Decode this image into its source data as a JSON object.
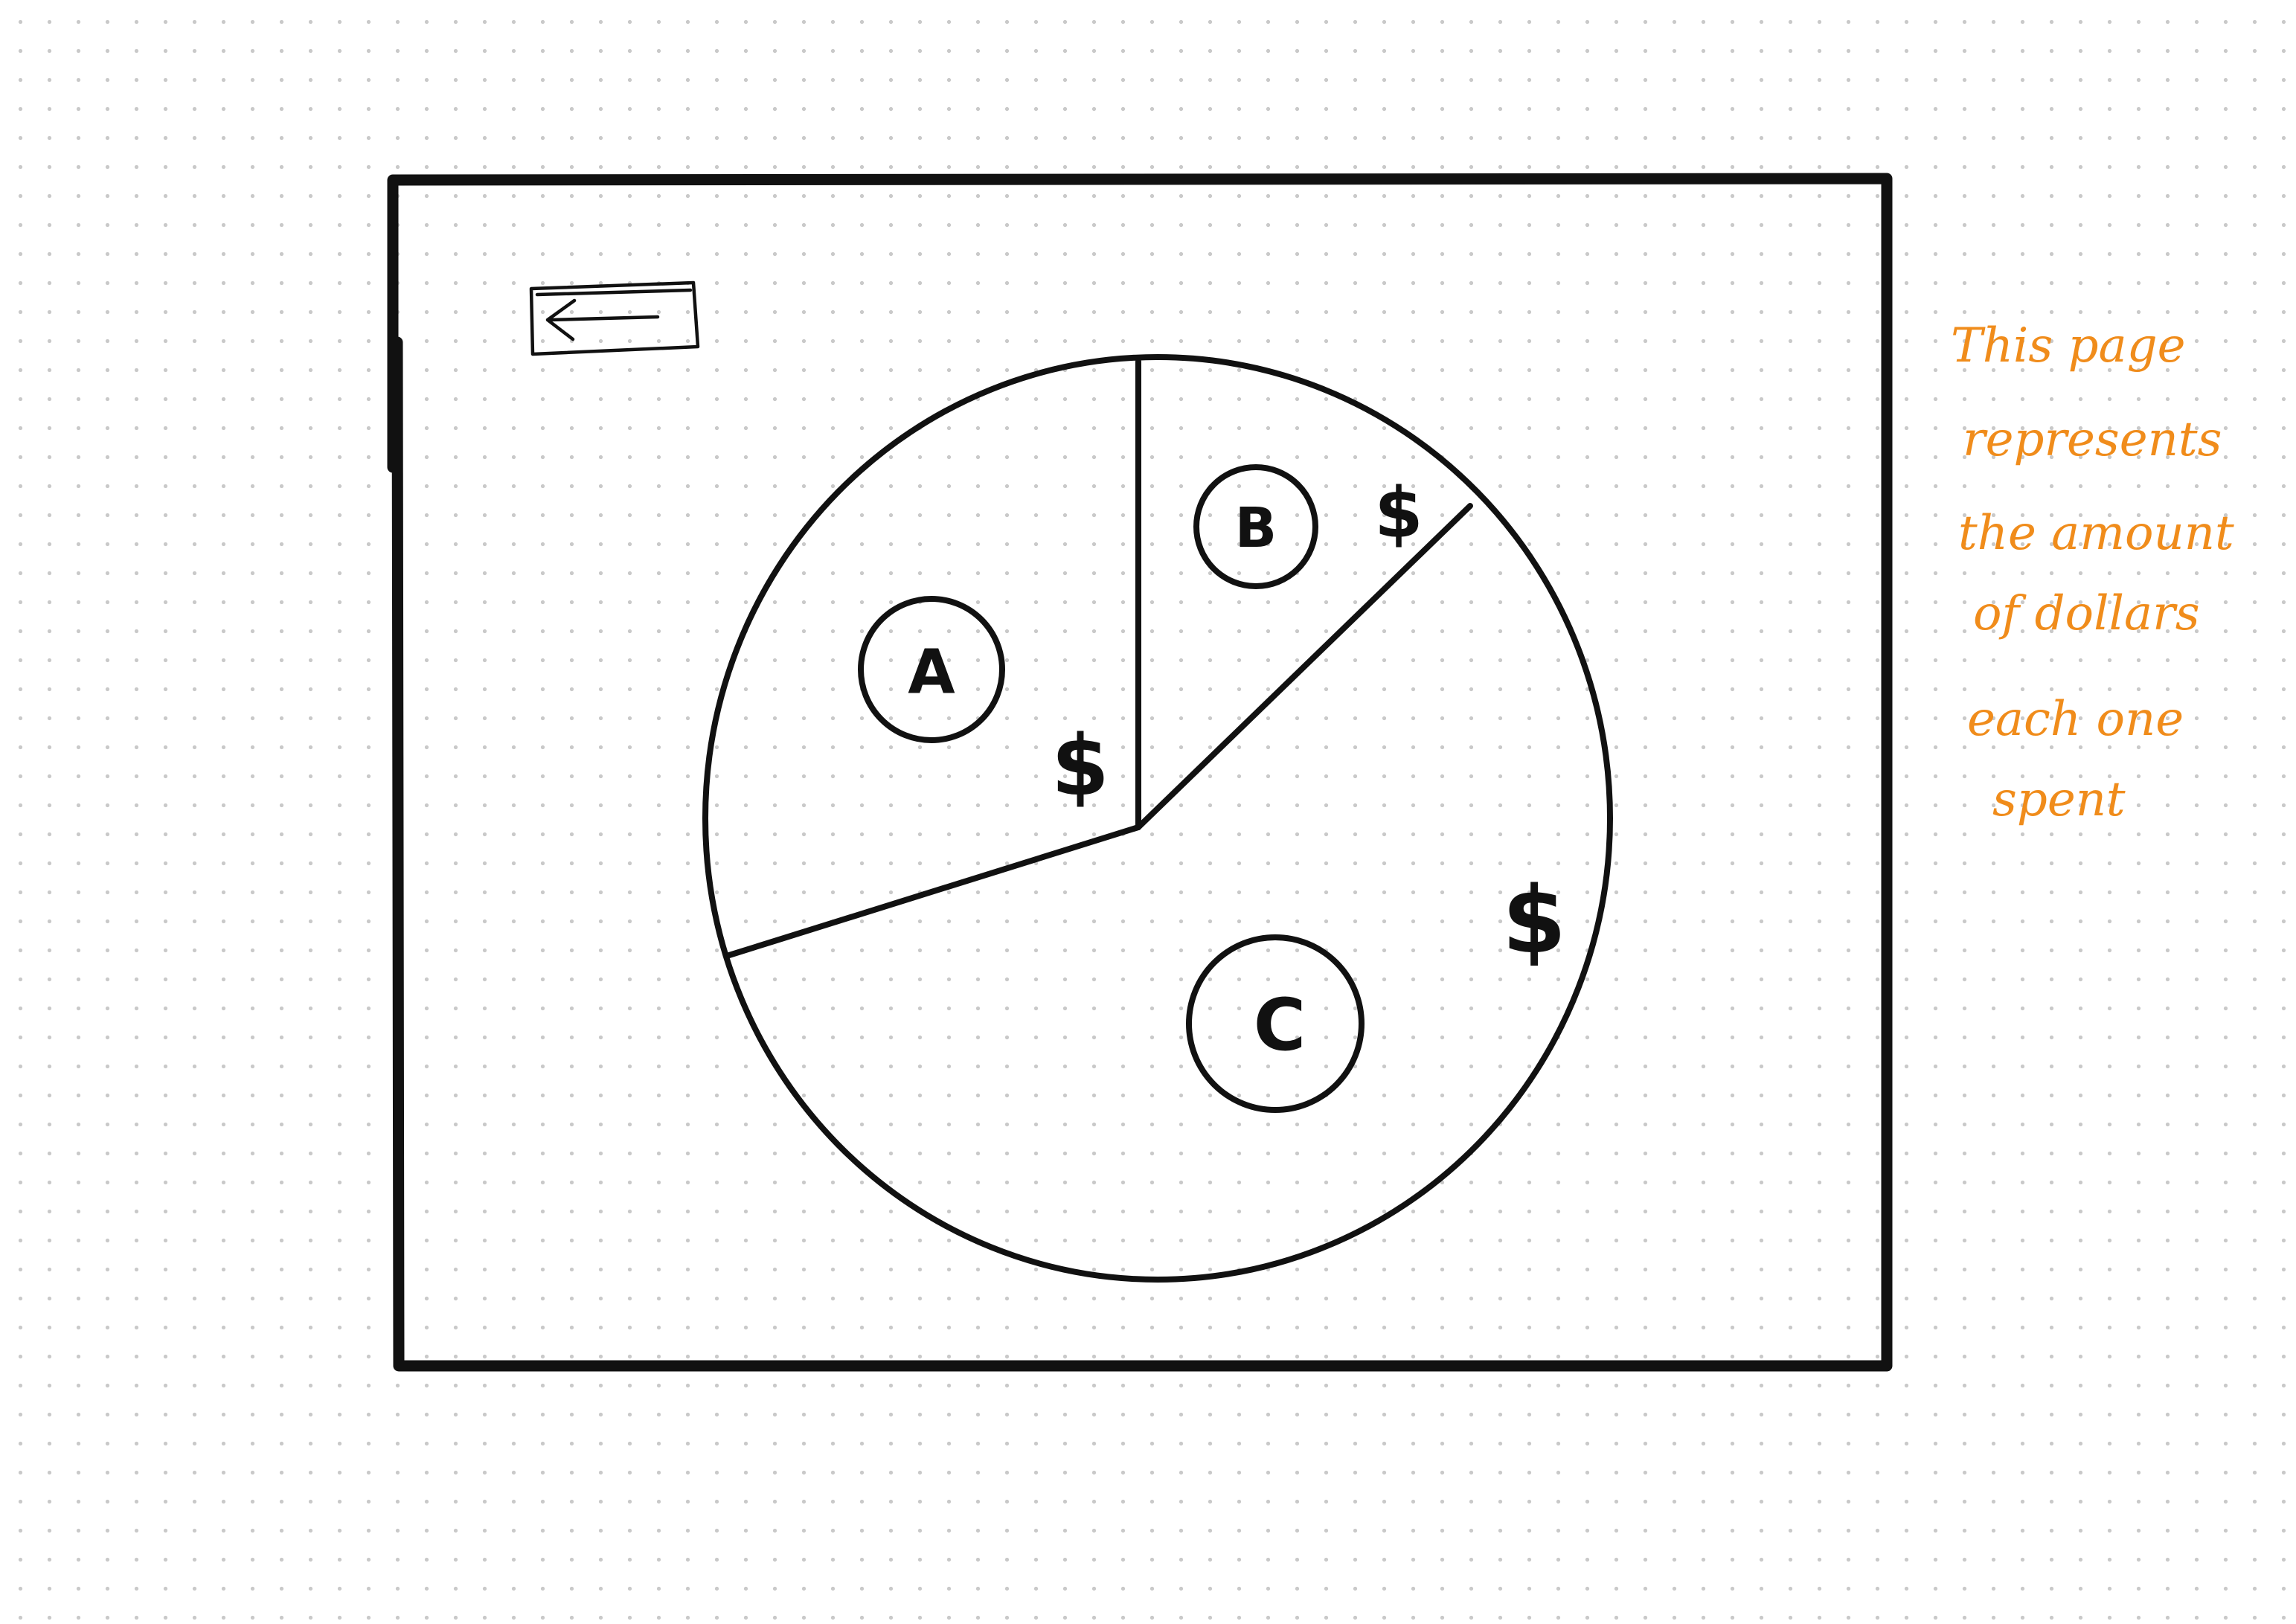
{
  "sketch": {
    "back_button": {
      "icon": "arrow-left-icon"
    },
    "pie": {
      "slices": [
        {
          "label": "A",
          "marker": "$"
        },
        {
          "label": "B",
          "marker": "$"
        },
        {
          "label": "C",
          "marker": "$"
        }
      ]
    },
    "annotation": {
      "color": "#f08c1b",
      "lines": [
        "This page",
        "represents",
        "the amount",
        "of dollars",
        "each one",
        "spent"
      ]
    }
  },
  "colors": {
    "ink": "#111111",
    "annotation": "#f08c1b",
    "grid_dot": "#c9c9c9"
  }
}
